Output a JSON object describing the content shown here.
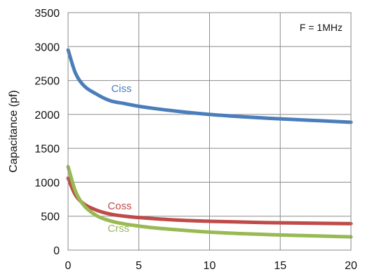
{
  "chart_data": {
    "type": "line",
    "title": "",
    "xlabel": "",
    "ylabel": "Capacitance (pf)",
    "annotation": "F = 1MHz",
    "xlim": [
      0,
      20
    ],
    "ylim": [
      0,
      3500
    ],
    "x_ticks": [
      "0",
      "5",
      "10",
      "15",
      "20"
    ],
    "y_ticks": [
      "0",
      "500",
      "1000",
      "1500",
      "2000",
      "2500",
      "3000",
      "3500"
    ],
    "grid": true,
    "x": [
      0,
      0.5,
      1,
      2,
      3,
      4,
      5,
      6,
      8,
      10,
      12,
      14,
      16,
      18,
      20
    ],
    "series": [
      {
        "name": "Ciss",
        "color": "#4a7ebb",
        "values": [
          2950,
          2620,
          2450,
          2300,
          2200,
          2160,
          2120,
          2090,
          2040,
          2000,
          1970,
          1945,
          1925,
          1905,
          1885
        ]
      },
      {
        "name": "Coss",
        "color": "#be4b48",
        "values": [
          1060,
          820,
          700,
          590,
          530,
          500,
          480,
          465,
          440,
          425,
          415,
          405,
          400,
          395,
          390
        ]
      },
      {
        "name": "Crss",
        "color": "#98b954",
        "values": [
          1230,
          880,
          690,
          510,
          430,
          385,
          355,
          330,
          295,
          265,
          245,
          230,
          218,
          207,
          195
        ]
      }
    ]
  }
}
